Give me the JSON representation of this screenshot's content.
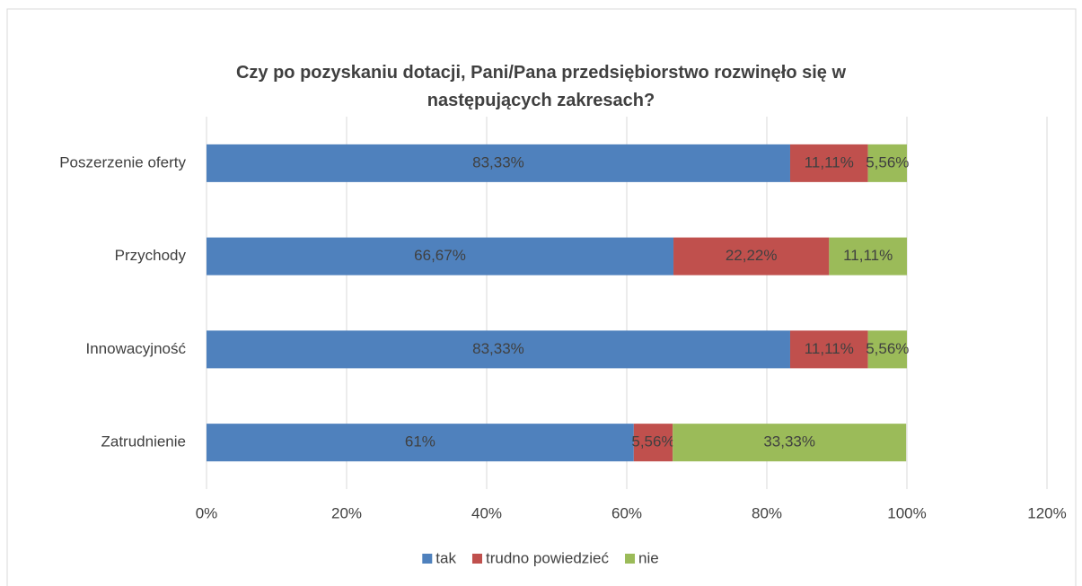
{
  "chart_data": {
    "type": "stacked_bar_horizontal",
    "title": "Czy po pozyskaniu dotacji, Pani/Pana przedsiębiorstwo rozwinęło się w następujących zakresach?",
    "categories": [
      "Poszerzenie oferty",
      "Przychody",
      "Innowacyjność",
      "Zatrudnienie"
    ],
    "series": [
      {
        "name": "tak",
        "color": "#4f81bd",
        "values": [
          83.33,
          66.67,
          83.33,
          61
        ],
        "value_labels": [
          "83,33%",
          "66,67%",
          "83,33%",
          "61%"
        ]
      },
      {
        "name": "trudno powiedzieć",
        "color": "#c0504d",
        "values": [
          11.11,
          22.22,
          11.11,
          5.56
        ],
        "value_labels": [
          "11,11%",
          "22,22%",
          "11,11%",
          "5,56%"
        ]
      },
      {
        "name": "nie",
        "color": "#9bbb59",
        "values": [
          5.56,
          11.11,
          5.56,
          33.33
        ],
        "value_labels": [
          "5,56%",
          "11,11%",
          "5,56%",
          "33,33%"
        ]
      }
    ],
    "xlim": [
      0,
      120
    ],
    "xticks": [
      {
        "value": 0,
        "label": "0%"
      },
      {
        "value": 20,
        "label": "20%"
      },
      {
        "value": 40,
        "label": "40%"
      },
      {
        "value": 60,
        "label": "60%"
      },
      {
        "value": 80,
        "label": "80%"
      },
      {
        "value": 100,
        "label": "100%"
      },
      {
        "value": 120,
        "label": "120%"
      }
    ],
    "grid": true,
    "legend": "bottom"
  }
}
